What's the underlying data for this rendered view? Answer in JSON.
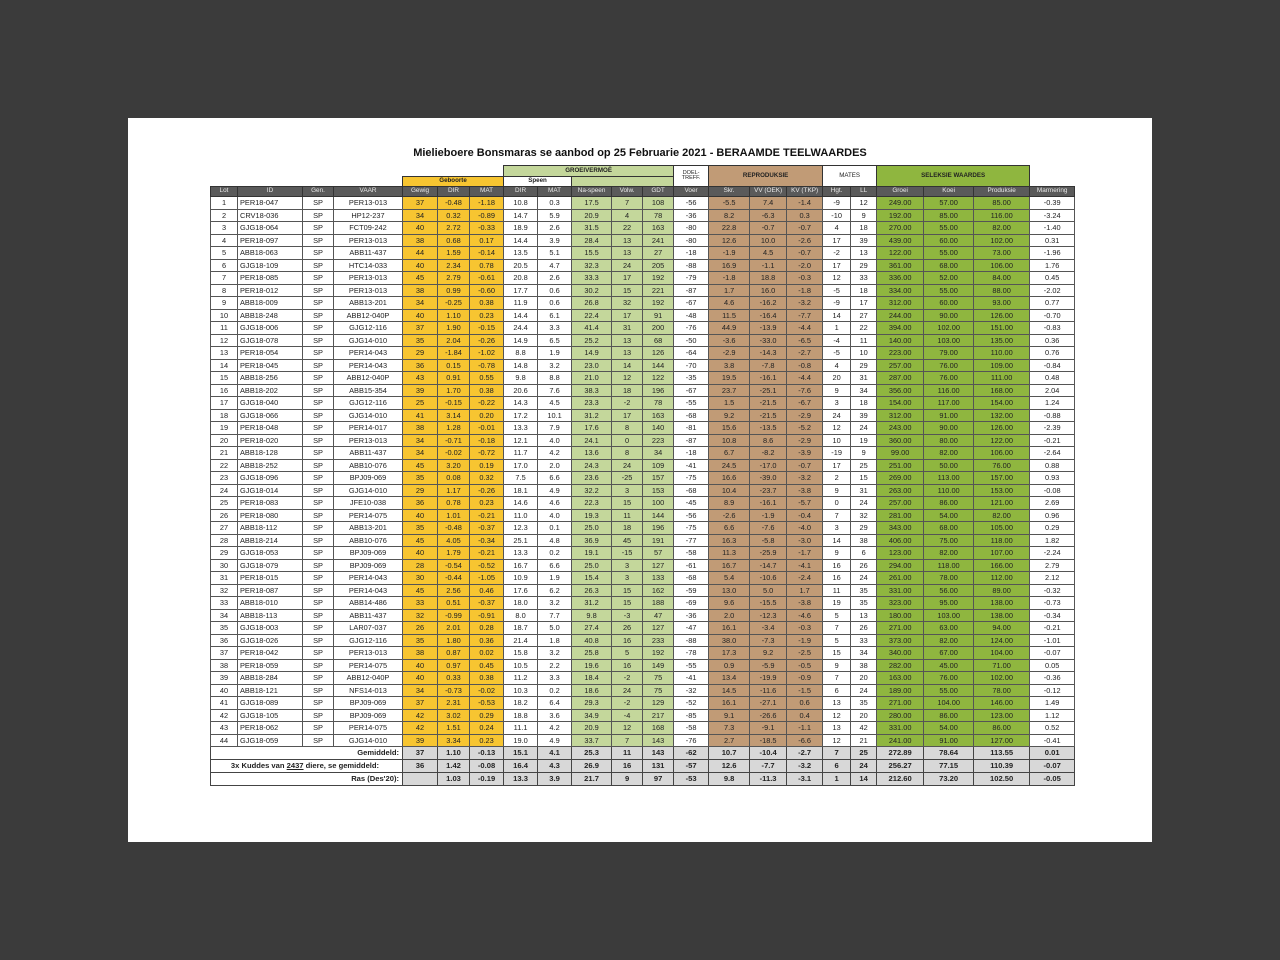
{
  "title": "Mielieboere Bonsmaras se aanbod op 25 Februarie 2021 - BERAAMDE TEELWAARDES",
  "groups": {
    "groeivermoe": "GROEIVERMOË",
    "doeltreff": "DOEL-TREFF.",
    "reproduksie": "REPRODUKSIE",
    "mates": "MATES",
    "seleksie": "SELEKSIE WAARDES",
    "geboorte": "Geboorte",
    "speen": "Speen"
  },
  "columns": [
    "Lot",
    "ID",
    "Gen.",
    "VAAR",
    "Gewig",
    "DIR",
    "MAT",
    "DIR",
    "MAT",
    "Na-speen",
    "Volw.",
    "GDT",
    "Voer",
    "Skr.",
    "VV (OEK)",
    "KV (TKP)",
    "Hgt.",
    "LL",
    "Groei",
    "Koei",
    "Produksie",
    "Marmering"
  ],
  "colors": {
    "geboorte": "#f7c531",
    "groeivermoe": "#c4d79b",
    "reproduksie": "#c19b76",
    "seleksie": "#8fb63f",
    "header": "#5a5a5a",
    "page": "#3b3b3b"
  },
  "rows": [
    [
      "1",
      "PER18-047",
      "SP",
      "PER13-013",
      "37",
      "-0.48",
      "-1.18",
      "10.8",
      "0.3",
      "17.5",
      "7",
      "108",
      "-56",
      "-5.5",
      "7.4",
      "-1.4",
      "-9",
      "12",
      "249.00",
      "57.00",
      "85.00",
      "-0.39"
    ],
    [
      "2",
      "CRV18-036",
      "SP",
      "HP12-237",
      "34",
      "0.32",
      "-0.89",
      "14.7",
      "5.9",
      "20.9",
      "4",
      "78",
      "-36",
      "8.2",
      "-6.3",
      "0.3",
      "-10",
      "9",
      "192.00",
      "85.00",
      "116.00",
      "-3.24"
    ],
    [
      "3",
      "GJG18-064",
      "SP",
      "FCT09-242",
      "40",
      "2.72",
      "-0.33",
      "18.9",
      "2.6",
      "31.5",
      "22",
      "163",
      "-80",
      "22.8",
      "-0.7",
      "-0.7",
      "4",
      "18",
      "270.00",
      "55.00",
      "82.00",
      "-1.40"
    ],
    [
      "4",
      "PER18-097",
      "SP",
      "PER13-013",
      "38",
      "0.68",
      "0.17",
      "14.4",
      "3.9",
      "28.4",
      "13",
      "241",
      "-80",
      "12.6",
      "10.0",
      "-2.6",
      "17",
      "39",
      "439.00",
      "60.00",
      "102.00",
      "0.31"
    ],
    [
      "5",
      "ABB18-063",
      "SP",
      "ABB11-437",
      "44",
      "1.59",
      "-0.14",
      "13.5",
      "5.1",
      "15.5",
      "13",
      "27",
      "-18",
      "-1.9",
      "4.5",
      "-0.7",
      "-2",
      "13",
      "122.00",
      "55.00",
      "73.00",
      "-1.96"
    ],
    [
      "6",
      "GJG18-109",
      "SP",
      "HTC14-033",
      "40",
      "2.34",
      "0.78",
      "20.5",
      "4.7",
      "32.3",
      "24",
      "205",
      "-88",
      "16.9",
      "-1.1",
      "-2.0",
      "17",
      "29",
      "361.00",
      "68.00",
      "106.00",
      "1.76"
    ],
    [
      "7",
      "PER18-085",
      "SP",
      "PER13-013",
      "45",
      "2.79",
      "-0.61",
      "20.8",
      "2.6",
      "33.3",
      "17",
      "192",
      "-79",
      "-1.8",
      "18.8",
      "-0.3",
      "12",
      "33",
      "336.00",
      "52.00",
      "84.00",
      "0.45"
    ],
    [
      "8",
      "PER18-012",
      "SP",
      "PER13-013",
      "38",
      "0.99",
      "-0.60",
      "17.7",
      "0.6",
      "30.2",
      "15",
      "221",
      "-87",
      "1.7",
      "16.0",
      "-1.8",
      "-5",
      "18",
      "334.00",
      "55.00",
      "88.00",
      "-2.02"
    ],
    [
      "9",
      "ABB18-009",
      "SP",
      "ABB13-201",
      "34",
      "-0.25",
      "0.38",
      "11.9",
      "0.6",
      "26.8",
      "32",
      "192",
      "-67",
      "4.6",
      "-16.2",
      "-3.2",
      "-9",
      "17",
      "312.00",
      "60.00",
      "93.00",
      "0.77"
    ],
    [
      "10",
      "ABB18-248",
      "SP",
      "ABB12-040P",
      "40",
      "1.10",
      "0.23",
      "14.4",
      "6.1",
      "22.4",
      "17",
      "91",
      "-48",
      "11.5",
      "-16.4",
      "-7.7",
      "14",
      "27",
      "244.00",
      "90.00",
      "126.00",
      "-0.70"
    ],
    [
      "11",
      "GJG18-006",
      "SP",
      "GJG12-116",
      "37",
      "1.90",
      "-0.15",
      "24.4",
      "3.3",
      "41.4",
      "31",
      "200",
      "-76",
      "44.9",
      "-13.9",
      "-4.4",
      "1",
      "22",
      "394.00",
      "102.00",
      "151.00",
      "-0.83"
    ],
    [
      "12",
      "GJG18-078",
      "SP",
      "GJG14-010",
      "35",
      "2.04",
      "-0.26",
      "14.9",
      "6.5",
      "25.2",
      "13",
      "68",
      "-50",
      "-3.6",
      "-33.0",
      "-6.5",
      "-4",
      "11",
      "140.00",
      "103.00",
      "135.00",
      "0.36"
    ],
    [
      "13",
      "PER18-054",
      "SP",
      "PER14-043",
      "29",
      "-1.84",
      "-1.02",
      "8.8",
      "1.9",
      "14.9",
      "13",
      "126",
      "-64",
      "-2.9",
      "-14.3",
      "-2.7",
      "-5",
      "10",
      "223.00",
      "79.00",
      "110.00",
      "0.76"
    ],
    [
      "14",
      "PER18-045",
      "SP",
      "PER14-043",
      "36",
      "0.15",
      "-0.78",
      "14.8",
      "3.2",
      "23.0",
      "14",
      "144",
      "-70",
      "3.8",
      "-7.8",
      "-0.8",
      "4",
      "29",
      "257.00",
      "76.00",
      "109.00",
      "-0.84"
    ],
    [
      "15",
      "ABB18-256",
      "SP",
      "ABB12-040P",
      "43",
      "0.91",
      "0.55",
      "9.8",
      "8.8",
      "21.0",
      "12",
      "122",
      "-35",
      "19.5",
      "-16.1",
      "-4.4",
      "20",
      "31",
      "287.00",
      "76.00",
      "111.00",
      "0.48"
    ],
    [
      "16",
      "ABB18-202",
      "SP",
      "ABB15-354",
      "39",
      "1.70",
      "0.38",
      "20.6",
      "7.6",
      "38.3",
      "18",
      "196",
      "-67",
      "23.7",
      "-25.1",
      "-7.6",
      "9",
      "34",
      "356.00",
      "116.00",
      "168.00",
      "2.04"
    ],
    [
      "17",
      "GJG18-040",
      "SP",
      "GJG12-116",
      "25",
      "-0.15",
      "-0.22",
      "14.3",
      "4.5",
      "23.3",
      "-2",
      "78",
      "-55",
      "1.5",
      "-21.5",
      "-6.7",
      "3",
      "18",
      "154.00",
      "117.00",
      "154.00",
      "1.24"
    ],
    [
      "18",
      "GJG18-066",
      "SP",
      "GJG14-010",
      "41",
      "3.14",
      "0.20",
      "17.2",
      "10.1",
      "31.2",
      "17",
      "163",
      "-68",
      "9.2",
      "-21.5",
      "-2.9",
      "24",
      "39",
      "312.00",
      "91.00",
      "132.00",
      "-0.88"
    ],
    [
      "19",
      "PER18-048",
      "SP",
      "PER14-017",
      "38",
      "1.28",
      "-0.01",
      "13.3",
      "7.9",
      "17.6",
      "8",
      "140",
      "-81",
      "15.6",
      "-13.5",
      "-5.2",
      "12",
      "24",
      "243.00",
      "90.00",
      "126.00",
      "-2.39"
    ],
    [
      "20",
      "PER18-020",
      "SP",
      "PER13-013",
      "34",
      "-0.71",
      "-0.18",
      "12.1",
      "4.0",
      "24.1",
      "0",
      "223",
      "-87",
      "10.8",
      "8.6",
      "-2.9",
      "10",
      "19",
      "360.00",
      "80.00",
      "122.00",
      "-0.21"
    ],
    [
      "21",
      "ABB18-128",
      "SP",
      "ABB11-437",
      "34",
      "-0.02",
      "-0.72",
      "11.7",
      "4.2",
      "13.6",
      "8",
      "34",
      "-18",
      "6.7",
      "-8.2",
      "-3.9",
      "-19",
      "9",
      "99.00",
      "82.00",
      "106.00",
      "-2.64"
    ],
    [
      "22",
      "ABB18-252",
      "SP",
      "ABB10-076",
      "45",
      "3.20",
      "0.19",
      "17.0",
      "2.0",
      "24.3",
      "24",
      "109",
      "-41",
      "24.5",
      "-17.0",
      "-0.7",
      "17",
      "25",
      "251.00",
      "50.00",
      "76.00",
      "0.88"
    ],
    [
      "23",
      "GJG18-096",
      "SP",
      "BPJ09-069",
      "35",
      "0.08",
      "0.32",
      "7.5",
      "6.6",
      "23.6",
      "-25",
      "157",
      "-75",
      "16.6",
      "-39.0",
      "-3.2",
      "2",
      "15",
      "269.00",
      "113.00",
      "157.00",
      "0.93"
    ],
    [
      "24",
      "GJG18-014",
      "SP",
      "GJG14-010",
      "29",
      "1.17",
      "-0.26",
      "18.1",
      "4.9",
      "32.2",
      "3",
      "153",
      "-68",
      "10.4",
      "-23.7",
      "-3.8",
      "9",
      "31",
      "263.00",
      "110.00",
      "153.00",
      "-0.08"
    ],
    [
      "25",
      "PER18-083",
      "SP",
      "JFE10-038",
      "36",
      "0.78",
      "0.23",
      "14.6",
      "4.6",
      "22.3",
      "15",
      "100",
      "-45",
      "8.9",
      "-16.1",
      "-5.7",
      "0",
      "24",
      "257.00",
      "86.00",
      "121.00",
      "2.69"
    ],
    [
      "26",
      "PER18-080",
      "SP",
      "PER14-075",
      "40",
      "1.01",
      "-0.21",
      "11.0",
      "4.0",
      "19.3",
      "11",
      "144",
      "-56",
      "-2.6",
      "-1.9",
      "-0.4",
      "7",
      "32",
      "281.00",
      "54.00",
      "82.00",
      "0.96"
    ],
    [
      "27",
      "ABB18-112",
      "SP",
      "ABB13-201",
      "35",
      "-0.48",
      "-0.37",
      "12.3",
      "0.1",
      "25.0",
      "18",
      "196",
      "-75",
      "6.6",
      "-7.6",
      "-4.0",
      "3",
      "29",
      "343.00",
      "68.00",
      "105.00",
      "0.29"
    ],
    [
      "28",
      "ABB18-214",
      "SP",
      "ABB10-076",
      "45",
      "4.05",
      "-0.34",
      "25.1",
      "4.8",
      "36.9",
      "45",
      "191",
      "-77",
      "16.3",
      "-5.8",
      "-3.0",
      "14",
      "38",
      "406.00",
      "75.00",
      "118.00",
      "1.82"
    ],
    [
      "29",
      "GJG18-053",
      "SP",
      "BPJ09-069",
      "40",
      "1.79",
      "-0.21",
      "13.3",
      "0.2",
      "19.1",
      "-15",
      "57",
      "-58",
      "11.3",
      "-25.9",
      "-1.7",
      "9",
      "6",
      "123.00",
      "82.00",
      "107.00",
      "-2.24"
    ],
    [
      "30",
      "GJG18-079",
      "SP",
      "BPJ09-069",
      "28",
      "-0.54",
      "-0.52",
      "16.7",
      "6.6",
      "25.0",
      "3",
      "127",
      "-61",
      "16.7",
      "-14.7",
      "-4.1",
      "16",
      "26",
      "294.00",
      "118.00",
      "166.00",
      "2.79"
    ],
    [
      "31",
      "PER18-015",
      "SP",
      "PER14-043",
      "30",
      "-0.44",
      "-1.05",
      "10.9",
      "1.9",
      "15.4",
      "3",
      "133",
      "-68",
      "5.4",
      "-10.6",
      "-2.4",
      "16",
      "24",
      "261.00",
      "78.00",
      "112.00",
      "2.12"
    ],
    [
      "32",
      "PER18-087",
      "SP",
      "PER14-043",
      "45",
      "2.56",
      "0.46",
      "17.6",
      "6.2",
      "26.3",
      "15",
      "162",
      "-59",
      "13.0",
      "5.0",
      "1.7",
      "11",
      "35",
      "331.00",
      "56.00",
      "89.00",
      "-0.32"
    ],
    [
      "33",
      "ABB18-010",
      "SP",
      "ABB14-486",
      "33",
      "0.51",
      "-0.37",
      "18.0",
      "3.2",
      "31.2",
      "15",
      "188",
      "-69",
      "9.6",
      "-15.5",
      "-3.8",
      "19",
      "35",
      "323.00",
      "95.00",
      "138.00",
      "-0.73"
    ],
    [
      "34",
      "ABB18-113",
      "SP",
      "ABB11-437",
      "32",
      "-0.99",
      "-0.91",
      "8.0",
      "7.7",
      "9.8",
      "-3",
      "47",
      "-36",
      "2.0",
      "-12.3",
      "-4.6",
      "5",
      "13",
      "180.00",
      "103.00",
      "138.00",
      "-0.34"
    ],
    [
      "35",
      "GJG18-003",
      "SP",
      "LAR07-037",
      "26",
      "2.01",
      "0.28",
      "18.7",
      "5.0",
      "27.4",
      "26",
      "127",
      "-47",
      "16.1",
      "-3.4",
      "-0.3",
      "7",
      "26",
      "271.00",
      "63.00",
      "94.00",
      "-0.21"
    ],
    [
      "36",
      "GJG18-026",
      "SP",
      "GJG12-116",
      "35",
      "1.80",
      "0.36",
      "21.4",
      "1.8",
      "40.8",
      "16",
      "233",
      "-88",
      "38.0",
      "-7.3",
      "-1.9",
      "5",
      "33",
      "373.00",
      "82.00",
      "124.00",
      "-1.01"
    ],
    [
      "37",
      "PER18-042",
      "SP",
      "PER13-013",
      "38",
      "0.87",
      "0.02",
      "15.8",
      "3.2",
      "25.8",
      "5",
      "192",
      "-78",
      "17.3",
      "9.2",
      "-2.5",
      "15",
      "34",
      "340.00",
      "67.00",
      "104.00",
      "-0.07"
    ],
    [
      "38",
      "PER18-059",
      "SP",
      "PER14-075",
      "40",
      "0.97",
      "0.45",
      "10.5",
      "2.2",
      "19.6",
      "16",
      "149",
      "-55",
      "0.9",
      "-5.9",
      "-0.5",
      "9",
      "38",
      "282.00",
      "45.00",
      "71.00",
      "0.05"
    ],
    [
      "39",
      "ABB18-284",
      "SP",
      "ABB12-040P",
      "40",
      "0.33",
      "0.38",
      "11.2",
      "3.3",
      "18.4",
      "-2",
      "75",
      "-41",
      "13.4",
      "-19.9",
      "-0.9",
      "7",
      "20",
      "163.00",
      "76.00",
      "102.00",
      "-0.36"
    ],
    [
      "40",
      "ABB18-121",
      "SP",
      "NFS14-013",
      "34",
      "-0.73",
      "-0.02",
      "10.3",
      "0.2",
      "18.6",
      "24",
      "75",
      "-32",
      "14.5",
      "-11.6",
      "-1.5",
      "6",
      "24",
      "189.00",
      "55.00",
      "78.00",
      "-0.12"
    ],
    [
      "41",
      "GJG18-089",
      "SP",
      "BPJ09-069",
      "37",
      "2.31",
      "-0.53",
      "18.2",
      "6.4",
      "29.3",
      "-2",
      "129",
      "-52",
      "16.1",
      "-27.1",
      "0.6",
      "13",
      "35",
      "271.00",
      "104.00",
      "146.00",
      "1.49"
    ],
    [
      "42",
      "GJG18-105",
      "SP",
      "BPJ09-069",
      "42",
      "3.02",
      "0.29",
      "18.8",
      "3.6",
      "34.9",
      "-4",
      "217",
      "-85",
      "9.1",
      "-26.6",
      "0.4",
      "12",
      "20",
      "280.00",
      "86.00",
      "123.00",
      "1.12"
    ],
    [
      "43",
      "PER18-062",
      "SP",
      "PER14-075",
      "42",
      "1.51",
      "0.24",
      "11.1",
      "4.2",
      "20.9",
      "12",
      "168",
      "-58",
      "7.3",
      "-9.1",
      "-1.1",
      "13",
      "42",
      "331.00",
      "54.00",
      "86.00",
      "0.52"
    ],
    [
      "44",
      "GJG18-059",
      "SP",
      "GJG14-010",
      "39",
      "3.34",
      "0.23",
      "19.0",
      "4.9",
      "33.7",
      "7",
      "143",
      "-76",
      "2.7",
      "-18.5",
      "-6.6",
      "12",
      "21",
      "241.00",
      "91.00",
      "127.00",
      "-0.41"
    ]
  ],
  "summary": [
    {
      "label_pre": "Gemiddeld:",
      "label_num": "",
      "label_post": "",
      "values": [
        "37",
        "1.10",
        "-0.13",
        "15.1",
        "4.1",
        "25.3",
        "11",
        "143",
        "-62",
        "10.7",
        "-10.4",
        "-2.7",
        "7",
        "25",
        "272.89",
        "78.64",
        "113.55",
        "0.01"
      ]
    },
    {
      "label_pre": "3x Kuddes van ",
      "label_num": "2437",
      "label_post": " diere, se gemiddeld:",
      "values": [
        "36",
        "1.42",
        "-0.08",
        "16.4",
        "4.3",
        "26.9",
        "16",
        "131",
        "-57",
        "12.6",
        "-7.7",
        "-3.2",
        "6",
        "24",
        "256.27",
        "77.15",
        "110.39",
        "-0.07"
      ]
    },
    {
      "label_pre": "Ras (Des'20):",
      "label_num": "",
      "label_post": "",
      "values": [
        "",
        "1.03",
        "-0.19",
        "13.3",
        "3.9",
        "21.7",
        "9",
        "97",
        "-53",
        "9.8",
        "-11.3",
        "-3.1",
        "1",
        "14",
        "212.60",
        "73.20",
        "102.50",
        "-0.05"
      ]
    }
  ]
}
